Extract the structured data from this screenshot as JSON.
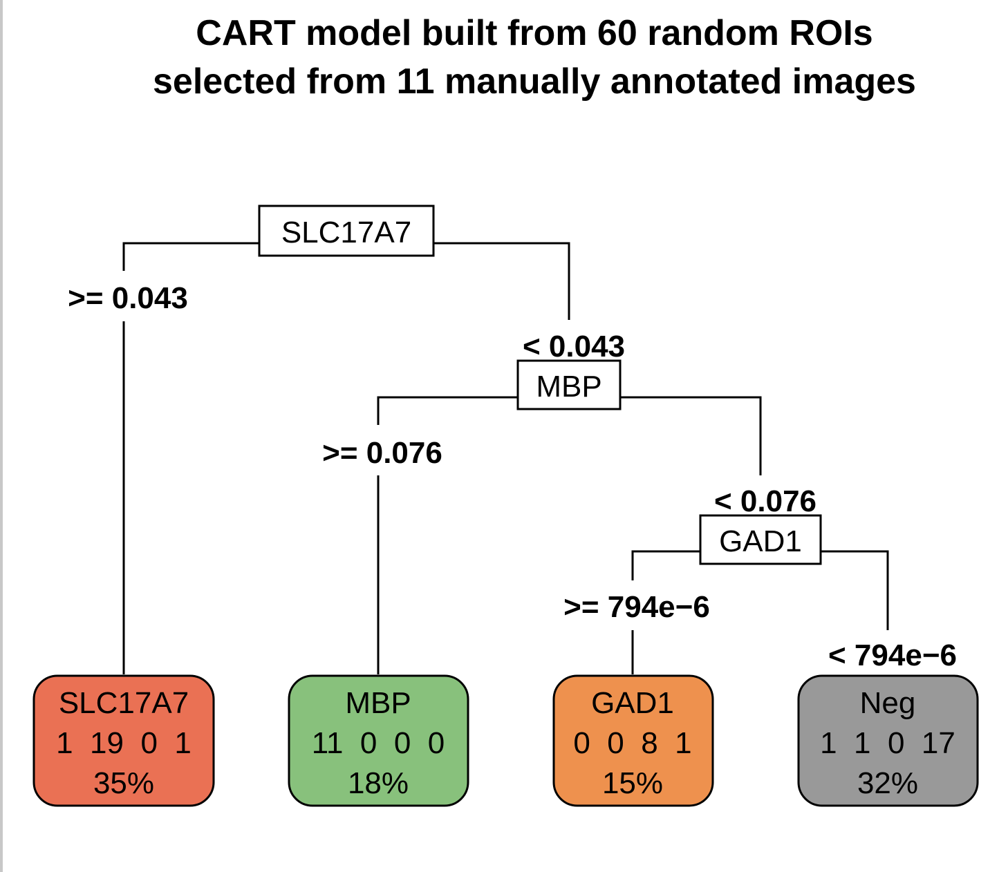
{
  "title": {
    "line1": "CART model built from 60 random ROIs",
    "line2": "selected from 11 manually annotated images"
  },
  "splits": [
    {
      "id": "root",
      "label": "SLC17A7"
    },
    {
      "id": "mbp",
      "label": "MBP"
    },
    {
      "id": "gad1",
      "label": "GAD1"
    }
  ],
  "edges": {
    "root_left": ">= 0.043",
    "root_right": "< 0.043",
    "mbp_left": ">= 0.076",
    "mbp_right": "< 0.076",
    "gad1_left": ">= 794e−6",
    "gad1_right": "< 794e−6"
  },
  "leaves": [
    {
      "class": "SLC17A7",
      "counts": [
        "1",
        "19",
        "0",
        "1"
      ],
      "percent": "35%",
      "color": "#ea7154"
    },
    {
      "class": "MBP",
      "counts": [
        "11",
        "0",
        "0",
        "0"
      ],
      "percent": "18%",
      "color": "#88c17c"
    },
    {
      "class": "GAD1",
      "counts": [
        "0",
        "0",
        "8",
        "1"
      ],
      "percent": "15%",
      "color": "#ee914e"
    },
    {
      "class": "Neg",
      "counts": [
        "1",
        "1",
        "0",
        "17"
      ],
      "percent": "32%",
      "color": "#999999"
    }
  ]
}
